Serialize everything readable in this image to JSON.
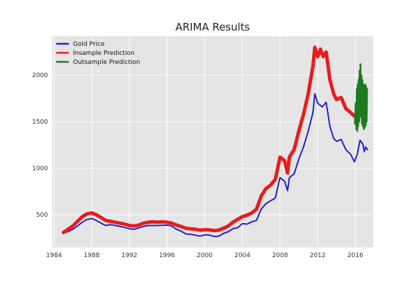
{
  "chart_data": {
    "type": "line",
    "title": "ARIMA Results",
    "xlabel": "",
    "ylabel": "",
    "xlim": [
      1983.8,
      2017.9
    ],
    "ylim": [
      150,
      2420
    ],
    "xticks": [
      1984,
      1988,
      1992,
      1996,
      2000,
      2004,
      2008,
      2012,
      2016
    ],
    "yticks": [
      500,
      1000,
      1500,
      2000
    ],
    "grid": true,
    "legend": "top-left",
    "background": "#e5e5e5",
    "series": [
      {
        "name": "Gold Price",
        "color": "#1f1fd0",
        "points": [
          [
            1985.0,
            305
          ],
          [
            1985.5,
            320
          ],
          [
            1986.0,
            345
          ],
          [
            1986.5,
            380
          ],
          [
            1987.0,
            420
          ],
          [
            1987.5,
            450
          ],
          [
            1988.0,
            460
          ],
          [
            1988.5,
            440
          ],
          [
            1989.0,
            410
          ],
          [
            1989.5,
            385
          ],
          [
            1990.0,
            395
          ],
          [
            1990.5,
            385
          ],
          [
            1991.0,
            375
          ],
          [
            1991.5,
            365
          ],
          [
            1992.0,
            350
          ],
          [
            1992.5,
            345
          ],
          [
            1993.0,
            360
          ],
          [
            1993.5,
            375
          ],
          [
            1994.0,
            385
          ],
          [
            1994.5,
            385
          ],
          [
            1995.0,
            385
          ],
          [
            1995.5,
            388
          ],
          [
            1996.0,
            390
          ],
          [
            1996.5,
            380
          ],
          [
            1997.0,
            345
          ],
          [
            1997.5,
            325
          ],
          [
            1998.0,
            295
          ],
          [
            1998.5,
            290
          ],
          [
            1999.0,
            282
          ],
          [
            1999.5,
            270
          ],
          [
            2000.0,
            285
          ],
          [
            2000.5,
            282
          ],
          [
            2001.0,
            268
          ],
          [
            2001.5,
            270
          ],
          [
            2002.0,
            300
          ],
          [
            2002.5,
            318
          ],
          [
            2003.0,
            350
          ],
          [
            2003.5,
            362
          ],
          [
            2004.0,
            405
          ],
          [
            2004.5,
            400
          ],
          [
            2005.0,
            425
          ],
          [
            2005.5,
            440
          ],
          [
            2006.0,
            560
          ],
          [
            2006.5,
            620
          ],
          [
            2007.0,
            650
          ],
          [
            2007.5,
            680
          ],
          [
            2008.0,
            900
          ],
          [
            2008.5,
            860
          ],
          [
            2008.8,
            760
          ],
          [
            2009.0,
            900
          ],
          [
            2009.5,
            940
          ],
          [
            2010.0,
            1100
          ],
          [
            2010.5,
            1230
          ],
          [
            2011.0,
            1400
          ],
          [
            2011.5,
            1600
          ],
          [
            2011.7,
            1800
          ],
          [
            2012.0,
            1700
          ],
          [
            2012.5,
            1660
          ],
          [
            2012.9,
            1710
          ],
          [
            2013.3,
            1450
          ],
          [
            2013.7,
            1320
          ],
          [
            2014.0,
            1290
          ],
          [
            2014.5,
            1310
          ],
          [
            2015.0,
            1200
          ],
          [
            2015.5,
            1150
          ],
          [
            2015.9,
            1070
          ],
          [
            2016.2,
            1150
          ],
          [
            2016.5,
            1300
          ],
          [
            2016.8,
            1260
          ],
          [
            2016.95,
            1180
          ],
          [
            2017.1,
            1230
          ],
          [
            2017.3,
            1200
          ]
        ]
      },
      {
        "name": "Insample Prediction",
        "color": "#e81c1c",
        "points": [
          [
            1985.0,
            310
          ],
          [
            1985.5,
            345
          ],
          [
            1986.0,
            380
          ],
          [
            1986.5,
            430
          ],
          [
            1987.0,
            480
          ],
          [
            1987.5,
            510
          ],
          [
            1988.0,
            520
          ],
          [
            1988.5,
            500
          ],
          [
            1989.0,
            470
          ],
          [
            1989.5,
            440
          ],
          [
            1990.0,
            430
          ],
          [
            1990.5,
            420
          ],
          [
            1991.0,
            410
          ],
          [
            1991.5,
            400
          ],
          [
            1992.0,
            385
          ],
          [
            1992.5,
            380
          ],
          [
            1993.0,
            390
          ],
          [
            1993.5,
            410
          ],
          [
            1994.0,
            420
          ],
          [
            1994.5,
            425
          ],
          [
            1995.0,
            420
          ],
          [
            1995.5,
            425
          ],
          [
            1996.0,
            420
          ],
          [
            1996.5,
            410
          ],
          [
            1997.0,
            390
          ],
          [
            1997.5,
            375
          ],
          [
            1998.0,
            355
          ],
          [
            1998.5,
            350
          ],
          [
            1999.0,
            345
          ],
          [
            1999.5,
            335
          ],
          [
            2000.0,
            340
          ],
          [
            2000.5,
            338
          ],
          [
            2001.0,
            330
          ],
          [
            2001.5,
            335
          ],
          [
            2002.0,
            355
          ],
          [
            2002.5,
            380
          ],
          [
            2003.0,
            420
          ],
          [
            2003.5,
            450
          ],
          [
            2004.0,
            480
          ],
          [
            2004.5,
            495
          ],
          [
            2005.0,
            520
          ],
          [
            2005.5,
            560
          ],
          [
            2006.0,
            700
          ],
          [
            2006.5,
            780
          ],
          [
            2007.0,
            820
          ],
          [
            2007.5,
            880
          ],
          [
            2008.0,
            1120
          ],
          [
            2008.5,
            1080
          ],
          [
            2008.8,
            950
          ],
          [
            2009.0,
            1120
          ],
          [
            2009.5,
            1200
          ],
          [
            2010.0,
            1400
          ],
          [
            2010.5,
            1580
          ],
          [
            2011.0,
            1800
          ],
          [
            2011.5,
            2100
          ],
          [
            2011.7,
            2300
          ],
          [
            2012.0,
            2200
          ],
          [
            2012.3,
            2280
          ],
          [
            2012.6,
            2200
          ],
          [
            2012.9,
            2250
          ],
          [
            2013.3,
            1950
          ],
          [
            2013.7,
            1800
          ],
          [
            2014.0,
            1740
          ],
          [
            2014.5,
            1760
          ],
          [
            2015.0,
            1640
          ],
          [
            2015.5,
            1600
          ],
          [
            2015.9,
            1560
          ]
        ]
      },
      {
        "name": "Outsample Prediction",
        "color": "#1e7a1e",
        "points": [
          [
            2015.95,
            1480
          ],
          [
            2016.05,
            1700
          ],
          [
            2016.1,
            1420
          ],
          [
            2016.15,
            1850
          ],
          [
            2016.2,
            1400
          ],
          [
            2016.25,
            1900
          ],
          [
            2016.3,
            1450
          ],
          [
            2016.35,
            1950
          ],
          [
            2016.4,
            1500
          ],
          [
            2016.45,
            2050
          ],
          [
            2016.5,
            1600
          ],
          [
            2016.55,
            2120
          ],
          [
            2016.6,
            1550
          ],
          [
            2016.65,
            2000
          ],
          [
            2016.7,
            1480
          ],
          [
            2016.75,
            1950
          ],
          [
            2016.8,
            1450
          ],
          [
            2016.85,
            1900
          ],
          [
            2016.9,
            1420
          ],
          [
            2016.95,
            1880
          ],
          [
            2017.0,
            1440
          ],
          [
            2017.05,
            1900
          ],
          [
            2017.1,
            1460
          ],
          [
            2017.15,
            1880
          ],
          [
            2017.2,
            1500
          ],
          [
            2017.25,
            1850
          ]
        ]
      }
    ]
  }
}
